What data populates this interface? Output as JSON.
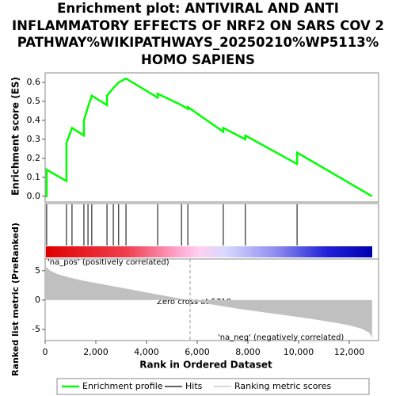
{
  "chart_data": {
    "type": "line",
    "title": [
      "Enrichment plot: ANTIVIRAL AND ANTI",
      "INFLAMMATORY EFFECTS OF NRF2 ON SARS COV 2",
      "PATHWAY%WIKIPATHWAYS_20250210%WP5113%",
      "HOMO SAPIENS"
    ],
    "y_label": "Enrichment score (ES)",
    "y2_label": "Ranked list metric (PreRanked)",
    "x_label": "Rank in Ordered Dataset",
    "annotations": [
      "'na_pos' (positively correlated)",
      "Zero cross at 5718",
      "'na_neg' (negatively correlated)"
    ],
    "zero_cross": 5718,
    "xlim": [
      0,
      13150
    ],
    "xticks": [
      0,
      {
        "value": 2000,
        "label": "2,000"
      },
      {
        "value": 4000,
        "label": "4,000"
      },
      {
        "value": 6000,
        "label": "6,000"
      },
      {
        "value": 8000,
        "label": "8,000"
      },
      {
        "value": 10000,
        "label": "10,000"
      },
      {
        "value": 12000,
        "label": "12,000"
      }
    ],
    "ylim": [
      -0.03,
      0.65
    ],
    "yticks": [
      {
        "value": 0,
        "label": "0.0"
      },
      0.1,
      0.2,
      0.3,
      0.4,
      0.5,
      0.6
    ],
    "y2lim": [
      -6.9,
      7.0
    ],
    "y2ticks": [
      -5,
      0,
      5
    ],
    "series": [
      {
        "name": "Enrichment profile",
        "color": "#00ff00",
        "x": [
          0,
          60,
          60,
          840,
          840,
          840,
          1060,
          1530,
          1530,
          1690,
          1840,
          2440,
          2440,
          2690,
          2900,
          3190,
          4440,
          4440,
          5380,
          5630,
          5630,
          7030,
          7030,
          7900,
          7900,
          9940,
          9940,
          12900
        ],
        "values": [
          0,
          0,
          0.14,
          0.08,
          0.18,
          0.28,
          0.36,
          0.32,
          0.4,
          0.47,
          0.53,
          0.48,
          0.53,
          0.57,
          0.6,
          0.62,
          0.52,
          0.54,
          0.48,
          0.46,
          0.47,
          0.34,
          0.36,
          0.3,
          0.32,
          0.17,
          0.23,
          0
        ]
      },
      {
        "name": "Hits",
        "color": "#000000",
        "x": [
          60,
          840,
          1060,
          1530,
          1690,
          1840,
          2440,
          2690,
          2900,
          3190,
          4440,
          5380,
          5630,
          7030,
          7900,
          9940
        ]
      },
      {
        "name": "Ranking metric scores",
        "color": "#c0c0c0",
        "x": [
          0,
          200,
          500,
          1000,
          1500,
          2000,
          3000,
          4000,
          5000,
          5718,
          6500,
          7500,
          8500,
          9500,
          10500,
          11500,
          12000,
          12500,
          12800,
          12900
        ],
        "values": [
          5.8,
          5.0,
          4.4,
          3.8,
          3.3,
          2.9,
          2.1,
          1.3,
          0.5,
          0,
          -0.7,
          -1.4,
          -2.0,
          -2.6,
          -3.2,
          -3.9,
          -4.3,
          -4.9,
          -5.6,
          -6.5
        ]
      }
    ]
  }
}
